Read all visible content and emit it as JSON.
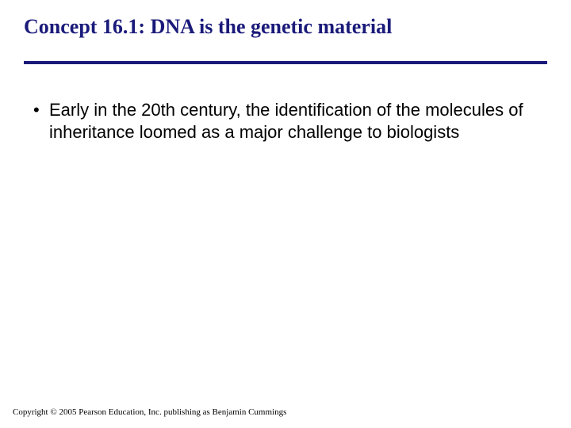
{
  "slide": {
    "title": "Concept 16.1: DNA is the genetic material",
    "title_color": "#1a1a7a",
    "title_fontsize": 26,
    "title_font": "Times New Roman",
    "title_weight": "bold",
    "divider_color": "#1a1a7a",
    "divider_thickness": 4,
    "background_color": "#ffffff",
    "bullets": [
      {
        "marker": "•",
        "text": "Early in the 20th century, the identification of the molecules of inheritance loomed as a major challenge to biologists"
      }
    ],
    "bullet_fontsize": 22,
    "bullet_color": "#000000",
    "bullet_font": "Arial",
    "footer": "Copyright © 2005 Pearson Education, Inc. publishing as Benjamin Cummings",
    "footer_fontsize": 11,
    "footer_font": "Times New Roman",
    "footer_color": "#000000"
  }
}
